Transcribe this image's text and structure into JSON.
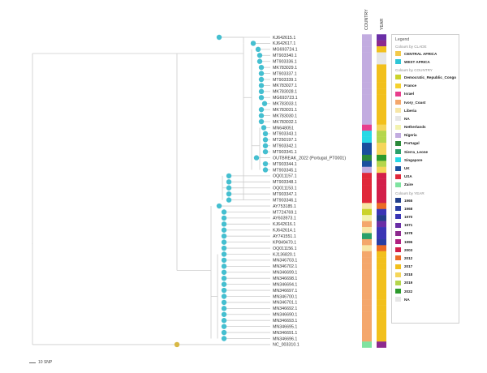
{
  "columns": {
    "country": "COUNTRY",
    "year": "YEAR"
  },
  "colors": {
    "branch": "#cccccc",
    "tip": "#45bfd0",
    "root_tip": "#d8b845",
    "CENTRAL AFRICA": "#f2ca4c",
    "WEST AFRICA": "#2fc6d6",
    "Democratic_Republic_Congo": "#cbd32b",
    "France": "#f5d12e",
    "Israel": "#e83e8c",
    "Ivory_Coast": "#f4a76c",
    "Liberia": "#f7e6a6",
    "NA": "#e6e6e6",
    "Netherlands": "#f3f3b0",
    "Nigeria": "#c2ace0",
    "Portugal": "#2c8a3a",
    "Sierra_Leone": "#2aa06a",
    "Singapore": "#27d9e6",
    "UK": "#1a4f9e",
    "USA": "#e0283a",
    "Zaire": "#7fe3a0",
    "1965": "#223f8a",
    "1968": "#2a3ea3",
    "1970": "#3a35b5",
    "1971": "#6a2ea6",
    "1978": "#8d2a8e",
    "1996": "#b02080",
    "2003": "#d31f4a",
    "2012": "#ec6b25",
    "2017": "#f2c01c",
    "2018": "#f5d65a",
    "2019": "#b5d64c",
    "2022": "#2c9a2c"
  },
  "legend": {
    "title": "Legend",
    "groups": [
      {
        "heading": "Colours by CLADE",
        "items": [
          "CENTRAL AFRICA",
          "WEST AFRICA"
        ]
      },
      {
        "heading": "Colours by COUNTRY",
        "items": [
          "Democratic_Republic_Congo",
          "France",
          "Israel",
          "Ivory_Coast",
          "Liberia",
          "NA",
          "Netherlands",
          "Nigeria",
          "Portugal",
          "Sierra_Leone",
          "Singapore",
          "UK",
          "USA",
          "Zaire"
        ]
      },
      {
        "heading": "Colours by YEAR",
        "items": [
          "1965",
          "1968",
          "1970",
          "1971",
          "1978",
          "1996",
          "2003",
          "2012",
          "2017",
          "2018",
          "2019",
          "2022",
          "NA"
        ]
      }
    ]
  },
  "scale_bar": {
    "label": "10 SNP"
  },
  "tips": [
    {
      "label": "KJ642615.1",
      "country": "Nigeria",
      "year": "1971"
    },
    {
      "label": "KJ642617.1",
      "country": "Nigeria",
      "year": "1978"
    },
    {
      "label": "MG693724.1",
      "country": "Nigeria",
      "year": "2017"
    },
    {
      "label": "MT903340.1",
      "country": "Nigeria",
      "year": "NA"
    },
    {
      "label": "MT903336.1",
      "country": "Nigeria",
      "year": "NA"
    },
    {
      "label": "MK783029.1",
      "country": "Nigeria",
      "year": "2017"
    },
    {
      "label": "MT903337.1",
      "country": "Nigeria",
      "year": "2017"
    },
    {
      "label": "MT903339.1",
      "country": "Nigeria",
      "year": "2017"
    },
    {
      "label": "MK783027.1",
      "country": "Nigeria",
      "year": "2017"
    },
    {
      "label": "MK783028.1",
      "country": "Nigeria",
      "year": "2017"
    },
    {
      "label": "MG693723.1",
      "country": "Nigeria",
      "year": "2017"
    },
    {
      "label": "MK783033.1",
      "country": "Nigeria",
      "year": "2017"
    },
    {
      "label": "MK783031.1",
      "country": "Nigeria",
      "year": "2017"
    },
    {
      "label": "MK783030.1",
      "country": "Nigeria",
      "year": "2017"
    },
    {
      "label": "MK783032.1",
      "country": "Nigeria",
      "year": "2017"
    },
    {
      "label": "MN648051",
      "country": "Israel",
      "year": "2018"
    },
    {
      "label": "MT903343.1",
      "country": "Singapore",
      "year": "2019"
    },
    {
      "label": "MT250197.1",
      "country": "Singapore",
      "year": "2019"
    },
    {
      "label": "MT903342.1",
      "country": "UK",
      "year": "2018"
    },
    {
      "label": "MT903341.1",
      "country": "UK",
      "year": "2018"
    },
    {
      "label": "OUTBREAK_2022 (Portugal_PT0001)",
      "country": "Portugal",
      "year": "2022"
    },
    {
      "label": "MT903344.1",
      "country": "UK",
      "year": "2019"
    },
    {
      "label": "MT903345.1",
      "country": "Nigeria",
      "year": "2018"
    },
    {
      "label": "OQ011157.1",
      "country": "USA",
      "year": "2003"
    },
    {
      "label": "MT903348.1",
      "country": "USA",
      "year": "2003"
    },
    {
      "label": "OQ011153.1",
      "country": "USA",
      "year": "2003"
    },
    {
      "label": "MT903347.1",
      "country": "USA",
      "year": "2003"
    },
    {
      "label": "MT903346.1",
      "country": "USA",
      "year": "2003"
    },
    {
      "label": "AY753185.1",
      "country": "Liberia",
      "year": "2012"
    },
    {
      "label": "MT724769.1",
      "country": "Democratic_Republic_Congo",
      "year": "1970"
    },
    {
      "label": "AY603973.1",
      "country": "Netherlands",
      "year": "1965"
    },
    {
      "label": "KJ642616.1",
      "country": "Ivory_Coast",
      "year": "1971"
    },
    {
      "label": "KJ642614.1",
      "country": "Liberia",
      "year": "1970"
    },
    {
      "label": "AY741551.1",
      "country": "Sierra_Leone",
      "year": "1970"
    },
    {
      "label": "KP849470.1",
      "country": "Ivory_Coast",
      "year": "1968"
    },
    {
      "label": "OQ011156.1",
      "country": "Liberia",
      "year": "2012"
    },
    {
      "label": "KJ136820.1",
      "country": "Ivory_Coast",
      "year": "2017"
    },
    {
      "label": "MN346703.1",
      "country": "Ivory_Coast",
      "year": "2017"
    },
    {
      "label": "MN346702.1",
      "country": "Ivory_Coast",
      "year": "2017"
    },
    {
      "label": "MN346699.1",
      "country": "Ivory_Coast",
      "year": "2017"
    },
    {
      "label": "MN346698.1",
      "country": "Ivory_Coast",
      "year": "2017"
    },
    {
      "label": "MN346694.1",
      "country": "Ivory_Coast",
      "year": "2017"
    },
    {
      "label": "MN346697.1",
      "country": "Ivory_Coast",
      "year": "2017"
    },
    {
      "label": "MN346700.1",
      "country": "Ivory_Coast",
      "year": "2017"
    },
    {
      "label": "MN346701.1",
      "country": "Ivory_Coast",
      "year": "2017"
    },
    {
      "label": "MN346692.1",
      "country": "Ivory_Coast",
      "year": "2017"
    },
    {
      "label": "MN346690.1",
      "country": "Ivory_Coast",
      "year": "2017"
    },
    {
      "label": "MN346693.1",
      "country": "Ivory_Coast",
      "year": "2017"
    },
    {
      "label": "MN346695.1",
      "country": "Ivory_Coast",
      "year": "2017"
    },
    {
      "label": "MN346691.1",
      "country": "Ivory_Coast",
      "year": "2017"
    },
    {
      "label": "MN346696.1",
      "country": "Ivory_Coast",
      "year": "2017"
    },
    {
      "label": "NC_003310.1",
      "country": "Zaire",
      "year": "1978"
    }
  ]
}
